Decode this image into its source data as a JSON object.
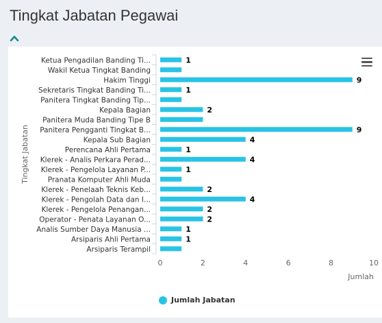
{
  "page": {
    "title": "Tingkat Jabatan Pegawai"
  },
  "icons": {
    "collapse": "chevron-up-icon",
    "menu": "hamburger-menu-icon"
  },
  "colors": {
    "bar": "#29c3e5",
    "collapse": "#1a8a8a"
  },
  "chart_data": {
    "type": "bar",
    "orientation": "horizontal",
    "title": "",
    "xlabel": "Jumlah",
    "ylabel": "Tingkat Jabatan",
    "xlim": [
      0,
      10
    ],
    "xticks": [
      "0",
      "2",
      "4",
      "6",
      "8",
      "10"
    ],
    "grid": false,
    "legend_position": "bottom",
    "categories": [
      "Ketua Pengadilan Banding Ti...",
      "Wakil Ketua Tingkat Banding",
      "Hakim Tinggi",
      "Sekretaris Tingkat Banding Ti...",
      "Panitera Tingkat Banding Tip...",
      "Kepala Bagian",
      "Panitera Muda Banding Tipe B",
      "Panitera Pengganti Tingkat B...",
      "Kepala Sub Bagian",
      "Perencana Ahli Pertama",
      "Klerek - Analis Perkara Perad...",
      "Klerek - Pengelola Layanan P...",
      "Pranata Komputer Ahli Muda",
      "Klerek - Penelaah Teknis Keb...",
      "Klerek - Pengolah Data dan I...",
      "Klerek - Pengelola Penangan...",
      "Operator - Penata Layanan O...",
      "Analis Sumber Daya Manusia ...",
      "Arsiparis Ahli Pertama",
      "Arsiparis Terampil"
    ],
    "series": [
      {
        "name": "Jumlah Jabatan",
        "values": [
          1,
          1,
          9,
          1,
          1,
          2,
          2,
          9,
          4,
          1,
          4,
          1,
          1,
          2,
          4,
          2,
          2,
          1,
          1,
          1
        ],
        "data_labels": [
          "1",
          "",
          "9",
          "1",
          "",
          "2",
          "",
          "9",
          "4",
          "1",
          "4",
          "1",
          "",
          "2",
          "4",
          "2",
          "2",
          "1",
          "1",
          ""
        ]
      }
    ]
  }
}
